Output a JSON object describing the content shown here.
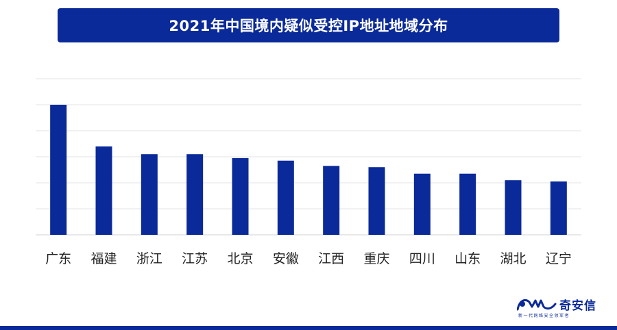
{
  "chart_data": {
    "type": "bar",
    "title": "2021年中国境内疑似受控IP地址地域分布",
    "categories": [
      "广东",
      "福建",
      "浙江",
      "江苏",
      "北京",
      "安徽",
      "江西",
      "重庆",
      "四川",
      "山东",
      "湖北",
      "辽宁"
    ],
    "values": [
      100,
      68,
      62,
      62,
      59,
      57,
      53,
      52,
      47,
      47,
      42,
      41
    ],
    "ylim": [
      0,
      120
    ],
    "grid": true,
    "y_tick_labels_shown": false,
    "bar_color": "#0b2a99",
    "xlabel": "",
    "ylabel": ""
  },
  "brand": {
    "name": "奇安信",
    "tagline": "新一代网络安全领军者"
  },
  "colors": {
    "accent": "#0b2a99",
    "grid": "#e3e3e3"
  }
}
